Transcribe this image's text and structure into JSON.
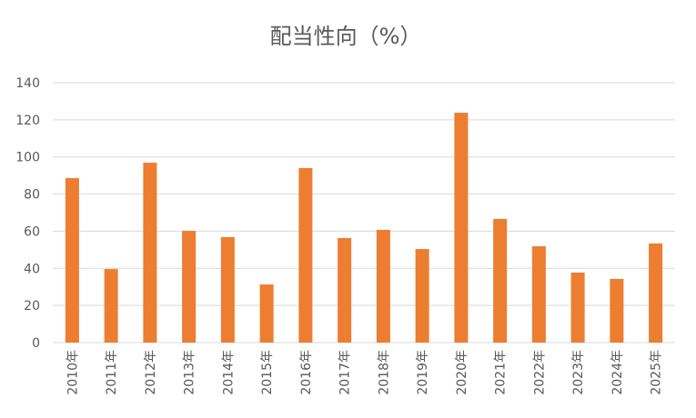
{
  "chart_data": {
    "type": "bar",
    "title": "配当性向（%）",
    "xlabel": "",
    "ylabel": "",
    "categories": [
      "2010年",
      "2011年",
      "2012年",
      "2013年",
      "2014年",
      "2015年",
      "2016年",
      "2017年",
      "2018年",
      "2019年",
      "2020年",
      "2021年",
      "2022年",
      "2023年",
      "2024年",
      "2025年"
    ],
    "values": [
      88.6,
      39.6,
      96.9,
      60.2,
      56.8,
      31.3,
      94.0,
      56.3,
      60.7,
      50.4,
      123.8,
      66.6,
      51.9,
      37.7,
      34.3,
      53.4
    ],
    "ylim": [
      0,
      140
    ],
    "yticks": [
      0,
      20,
      40,
      60,
      80,
      100,
      120,
      140
    ],
    "grid": true,
    "bar_color": "#ED7D31",
    "grid_color": "#D9D9D9"
  }
}
